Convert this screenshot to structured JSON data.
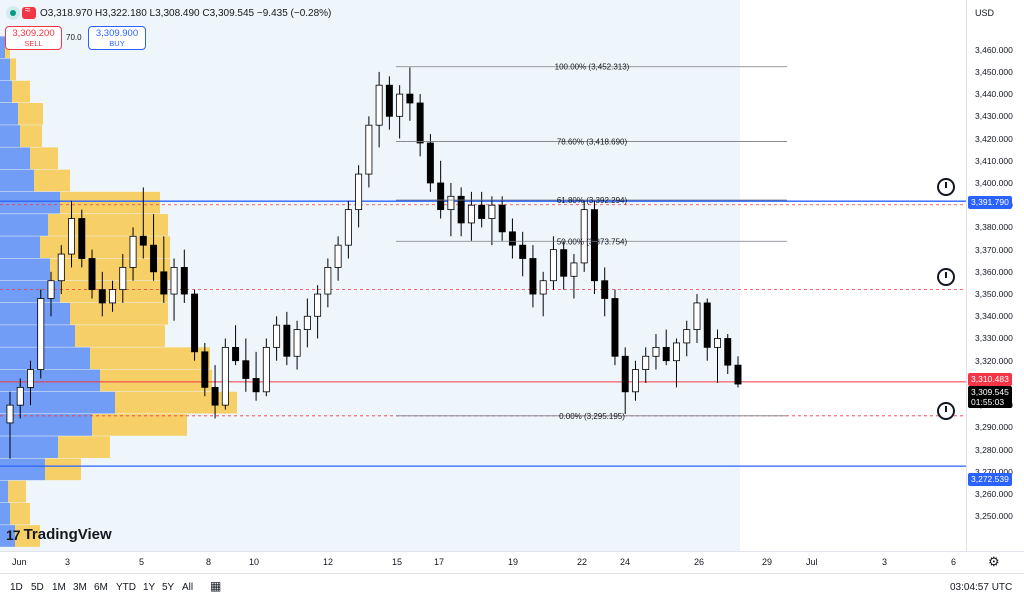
{
  "legend": {
    "open": "O3,318.970",
    "high": "H3,322.180",
    "low": "L3,308.490",
    "close": "C3,309.545",
    "change": "−9.435 (−0.28%)"
  },
  "trade": {
    "sell_price": "3,309.200",
    "sell_label": "SELL",
    "spread": "70.0",
    "buy_price": "3,309.900",
    "buy_label": "BUY"
  },
  "currency": "USD",
  "logo_text": "TradingView",
  "price_axis": [
    "3,460.000",
    "3,450.000",
    "3,440.000",
    "3,430.000",
    "3,420.000",
    "3,410.000",
    "3,400.000",
    "3,390.000",
    "3,380.000",
    "3,370.000",
    "3,360.000",
    "3,350.000",
    "3,340.000",
    "3,330.000",
    "3,320.000",
    "3,300.000",
    "3,290.000",
    "3,280.000",
    "3,270.000",
    "3,260.000",
    "3,250.000"
  ],
  "price_tags": {
    "line_upper": "3,391.790",
    "sell_line": "3,310.483",
    "last_price": "3,309.545",
    "countdown": "01:55:03",
    "line_lower": "3,272.539"
  },
  "fib_levels": [
    {
      "label": "100.00% (3,452.313)",
      "value": 3452.313
    },
    {
      "label": "78.60% (3,418.690)",
      "value": 3418.69
    },
    {
      "label": "61.80% (3,392.294)",
      "value": 3392.294
    },
    {
      "label": "50.00% (3,373.754)",
      "value": 3373.754
    },
    {
      "label": "0.00% (3,295.195)",
      "value": 3295.195
    }
  ],
  "date_axis": [
    "Jun",
    "3",
    "5",
    "8",
    "10",
    "12",
    "15",
    "17",
    "19",
    "22",
    "24",
    "26",
    "29",
    "Jul",
    "3",
    "6"
  ],
  "toolbar": {
    "ranges": [
      "1D",
      "5D",
      "1M",
      "3M",
      "6M",
      "YTD",
      "1Y",
      "5Y",
      "All"
    ],
    "clock": "03:04:57 UTC"
  },
  "colors": {
    "up": "#ffffff",
    "down": "#000000",
    "sell": "#f23645",
    "buy": "#2962ff",
    "volume_buy": "#5b8df5",
    "volume_sell": "#f7c94b"
  },
  "chart_data": {
    "type": "candlestick",
    "ylim": [
      3242,
      3472
    ],
    "candles": [
      {
        "o": 3292,
        "h": 3306,
        "l": 3276,
        "c": 3300
      },
      {
        "o": 3300,
        "h": 3312,
        "l": 3294,
        "c": 3308
      },
      {
        "o": 3308,
        "h": 3320,
        "l": 3300,
        "c": 3316
      },
      {
        "o": 3316,
        "h": 3352,
        "l": 3312,
        "c": 3348
      },
      {
        "o": 3348,
        "h": 3360,
        "l": 3340,
        "c": 3356
      },
      {
        "o": 3356,
        "h": 3372,
        "l": 3350,
        "c": 3368
      },
      {
        "o": 3368,
        "h": 3392,
        "l": 3362,
        "c": 3384
      },
      {
        "o": 3384,
        "h": 3388,
        "l": 3362,
        "c": 3366
      },
      {
        "o": 3366,
        "h": 3370,
        "l": 3348,
        "c": 3352
      },
      {
        "o": 3352,
        "h": 3360,
        "l": 3340,
        "c": 3346
      },
      {
        "o": 3346,
        "h": 3356,
        "l": 3342,
        "c": 3352
      },
      {
        "o": 3352,
        "h": 3368,
        "l": 3346,
        "c": 3362
      },
      {
        "o": 3362,
        "h": 3380,
        "l": 3356,
        "c": 3376
      },
      {
        "o": 3376,
        "h": 3398,
        "l": 3366,
        "c": 3372
      },
      {
        "o": 3372,
        "h": 3386,
        "l": 3356,
        "c": 3360
      },
      {
        "o": 3360,
        "h": 3376,
        "l": 3346,
        "c": 3350
      },
      {
        "o": 3350,
        "h": 3366,
        "l": 3338,
        "c": 3362
      },
      {
        "o": 3362,
        "h": 3370,
        "l": 3346,
        "c": 3350
      },
      {
        "o": 3350,
        "h": 3352,
        "l": 3320,
        "c": 3324
      },
      {
        "o": 3324,
        "h": 3328,
        "l": 3304,
        "c": 3308
      },
      {
        "o": 3308,
        "h": 3318,
        "l": 3294,
        "c": 3300
      },
      {
        "o": 3300,
        "h": 3330,
        "l": 3298,
        "c": 3326
      },
      {
        "o": 3326,
        "h": 3336,
        "l": 3318,
        "c": 3320
      },
      {
        "o": 3320,
        "h": 3330,
        "l": 3306,
        "c": 3312
      },
      {
        "o": 3312,
        "h": 3324,
        "l": 3302,
        "c": 3306
      },
      {
        "o": 3306,
        "h": 3330,
        "l": 3304,
        "c": 3326
      },
      {
        "o": 3326,
        "h": 3340,
        "l": 3320,
        "c": 3336
      },
      {
        "o": 3336,
        "h": 3342,
        "l": 3318,
        "c": 3322
      },
      {
        "o": 3322,
        "h": 3338,
        "l": 3316,
        "c": 3334
      },
      {
        "o": 3334,
        "h": 3348,
        "l": 3326,
        "c": 3340
      },
      {
        "o": 3340,
        "h": 3354,
        "l": 3330,
        "c": 3350
      },
      {
        "o": 3350,
        "h": 3366,
        "l": 3344,
        "c": 3362
      },
      {
        "o": 3362,
        "h": 3376,
        "l": 3356,
        "c": 3372
      },
      {
        "o": 3372,
        "h": 3392,
        "l": 3366,
        "c": 3388
      },
      {
        "o": 3388,
        "h": 3408,
        "l": 3380,
        "c": 3404
      },
      {
        "o": 3404,
        "h": 3430,
        "l": 3398,
        "c": 3426
      },
      {
        "o": 3426,
        "h": 3450,
        "l": 3416,
        "c": 3444
      },
      {
        "o": 3444,
        "h": 3448,
        "l": 3424,
        "c": 3430
      },
      {
        "o": 3430,
        "h": 3444,
        "l": 3420,
        "c": 3440
      },
      {
        "o": 3440,
        "h": 3452,
        "l": 3428,
        "c": 3436
      },
      {
        "o": 3436,
        "h": 3440,
        "l": 3412,
        "c": 3418
      },
      {
        "o": 3418,
        "h": 3422,
        "l": 3396,
        "c": 3400
      },
      {
        "o": 3400,
        "h": 3410,
        "l": 3384,
        "c": 3388
      },
      {
        "o": 3388,
        "h": 3400,
        "l": 3376,
        "c": 3394
      },
      {
        "o": 3394,
        "h": 3398,
        "l": 3376,
        "c": 3382
      },
      {
        "o": 3382,
        "h": 3396,
        "l": 3374,
        "c": 3390
      },
      {
        "o": 3390,
        "h": 3396,
        "l": 3380,
        "c": 3384
      },
      {
        "o": 3384,
        "h": 3394,
        "l": 3372,
        "c": 3390
      },
      {
        "o": 3390,
        "h": 3394,
        "l": 3374,
        "c": 3378
      },
      {
        "o": 3378,
        "h": 3384,
        "l": 3366,
        "c": 3372
      },
      {
        "o": 3372,
        "h": 3378,
        "l": 3358,
        "c": 3366
      },
      {
        "o": 3366,
        "h": 3372,
        "l": 3344,
        "c": 3350
      },
      {
        "o": 3350,
        "h": 3360,
        "l": 3340,
        "c": 3356
      },
      {
        "o": 3356,
        "h": 3376,
        "l": 3352,
        "c": 3370
      },
      {
        "o": 3370,
        "h": 3374,
        "l": 3352,
        "c": 3358
      },
      {
        "o": 3358,
        "h": 3368,
        "l": 3348,
        "c": 3364
      },
      {
        "o": 3364,
        "h": 3392,
        "l": 3360,
        "c": 3388
      },
      {
        "o": 3388,
        "h": 3392,
        "l": 3350,
        "c": 3356
      },
      {
        "o": 3356,
        "h": 3362,
        "l": 3340,
        "c": 3348
      },
      {
        "o": 3348,
        "h": 3352,
        "l": 3318,
        "c": 3322
      },
      {
        "o": 3322,
        "h": 3326,
        "l": 3296,
        "c": 3306
      },
      {
        "o": 3306,
        "h": 3320,
        "l": 3302,
        "c": 3316
      },
      {
        "o": 3316,
        "h": 3326,
        "l": 3310,
        "c": 3322
      },
      {
        "o": 3322,
        "h": 3332,
        "l": 3316,
        "c": 3326
      },
      {
        "o": 3326,
        "h": 3334,
        "l": 3318,
        "c": 3320
      },
      {
        "o": 3320,
        "h": 3330,
        "l": 3308,
        "c": 3328
      },
      {
        "o": 3328,
        "h": 3338,
        "l": 3322,
        "c": 3334
      },
      {
        "o": 3334,
        "h": 3350,
        "l": 3328,
        "c": 3346
      },
      {
        "o": 3346,
        "h": 3348,
        "l": 3320,
        "c": 3326
      },
      {
        "o": 3326,
        "h": 3334,
        "l": 3310,
        "c": 3330
      },
      {
        "o": 3330,
        "h": 3332,
        "l": 3314,
        "c": 3318
      },
      {
        "o": 3318,
        "h": 3322,
        "l": 3308,
        "c": 3309.5
      }
    ]
  }
}
